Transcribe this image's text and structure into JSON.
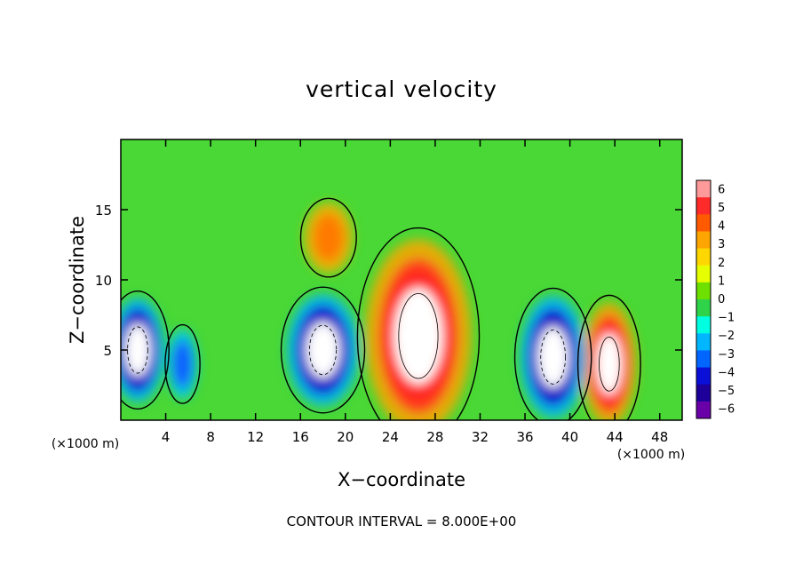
{
  "chart_data": {
    "type": "heatmap",
    "title": "vertical velocity",
    "xlabel": "X−coordinate",
    "ylabel": "Z−coordinate",
    "x_unit": "(×1000 m)",
    "y_unit": "(×1000 m)",
    "xlim": [
      0,
      50
    ],
    "ylim": [
      0,
      20
    ],
    "x_ticks": [
      "4",
      "8",
      "12",
      "16",
      "20",
      "24",
      "28",
      "32",
      "36",
      "40",
      "44",
      "48"
    ],
    "x_tick_values": [
      4,
      8,
      12,
      16,
      20,
      24,
      28,
      32,
      36,
      40,
      44,
      48
    ],
    "y_ticks": [
      "5",
      "10",
      "15"
    ],
    "y_tick_values": [
      5,
      10,
      15
    ],
    "colorbar": {
      "min": -6,
      "max": 6,
      "labels": [
        "6",
        "5",
        "4",
        "3",
        "2",
        "1",
        "0",
        "−1",
        "−2",
        "−3",
        "−4",
        "−5",
        "−6"
      ],
      "colors": [
        "#ff9a9a",
        "#ff2a2a",
        "#ff5a00",
        "#ffa500",
        "#ffd700",
        "#e6ff00",
        "#6de000",
        "#2fd34a",
        "#00ffe0",
        "#00b7ff",
        "#0066ff",
        "#0a10d8",
        "#1c0099",
        "#6a00a8"
      ]
    },
    "features": [
      {
        "label": "updraft",
        "x": 26.5,
        "z": 6.0,
        "w": 7.0,
        "rx": 3.5,
        "rz": 5.5
      },
      {
        "label": "updraft",
        "x": 43.5,
        "z": 4.0,
        "w": 7.0,
        "rx": 1.8,
        "rz": 3.5
      },
      {
        "label": "updraft",
        "x": 18.5,
        "z": 13.0,
        "w": 3.0,
        "rx": 1.6,
        "rz": 2.0
      },
      {
        "label": "downdraft",
        "x": 18.0,
        "z": 5.0,
        "w": -7.0,
        "rx": 2.4,
        "rz": 3.2
      },
      {
        "label": "downdraft",
        "x": 38.5,
        "z": 4.5,
        "w": -7.0,
        "rx": 2.2,
        "rz": 3.5
      },
      {
        "label": "downdraft",
        "x": 1.5,
        "z": 5.0,
        "w": -7.0,
        "rx": 1.8,
        "rz": 3.0
      },
      {
        "label": "downdraft",
        "x": 5.5,
        "z": 4.0,
        "w": -4.0,
        "rx": 1.0,
        "rz": 2.0
      }
    ],
    "contour_interval": "CONTOUR INTERVAL = 8.000E+00",
    "grid": false
  }
}
